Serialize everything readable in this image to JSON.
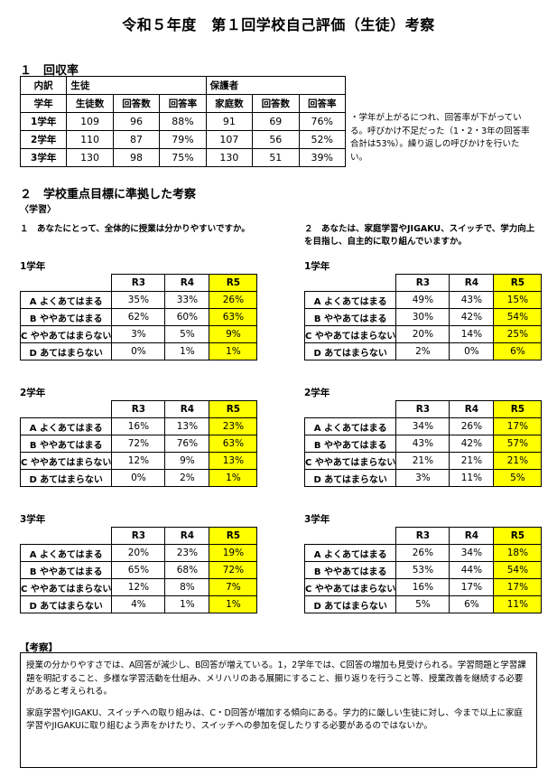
{
  "title": "令和５年度　第１回学校自己評価（生徒）考察",
  "section1": {
    "heading": "１　回収率",
    "header_row1": [
      "内訳",
      "生徒",
      "保護者"
    ],
    "header_row2": [
      "学年",
      "生徒数",
      "回答数",
      "回答率",
      "家庭数",
      "回答数",
      "回答率"
    ],
    "rows": [
      [
        "1学年",
        "109",
        "96",
        "88%",
        "91",
        "69",
        "76%"
      ],
      [
        "2学年",
        "110",
        "87",
        "79%",
        "107",
        "56",
        "52%"
      ],
      [
        "3学年",
        "130",
        "98",
        "75%",
        "130",
        "51",
        "39%"
      ]
    ],
    "note": "・学年が上がるにつれ、回答率が下がっている。呼びかけ不足だった（1・2・3年の回答率合計は53%）。繰り返しの呼びかけを行いたい。"
  },
  "section2": {
    "heading": "２　学校重点目標に準拠した考察",
    "sub": "〈学習〉",
    "header": [
      "",
      "R3",
      "R4",
      "R5"
    ],
    "labels": [
      "A よくあてはまる",
      "B ややあてはまる",
      "C ややあてはまらない",
      "D あてはまらない"
    ],
    "left": {
      "question": "１　あなたにとって、全体的に授業は分かりやすいですか。",
      "grades": [
        {
          "name": "1学年",
          "rows": [
            [
              "35%",
              "33%",
              "26%"
            ],
            [
              "62%",
              "60%",
              "63%"
            ],
            [
              "3%",
              "5%",
              "9%"
            ],
            [
              "0%",
              "1%",
              "1%"
            ]
          ]
        },
        {
          "name": "2学年",
          "rows": [
            [
              "16%",
              "13%",
              "23%"
            ],
            [
              "72%",
              "76%",
              "63%"
            ],
            [
              "12%",
              "9%",
              "13%"
            ],
            [
              "0%",
              "2%",
              "1%"
            ]
          ]
        },
        {
          "name": "3学年",
          "rows": [
            [
              "20%",
              "23%",
              "19%"
            ],
            [
              "65%",
              "68%",
              "72%"
            ],
            [
              "12%",
              "8%",
              "7%"
            ],
            [
              "4%",
              "1%",
              "1%"
            ]
          ]
        }
      ]
    },
    "right": {
      "question": "２　あなたは、家庭学習やJIGAKU、スイッチで、学力向上を目指し、自主的に取り組んでいますか。",
      "grades": [
        {
          "name": "1学年",
          "rows": [
            [
              "49%",
              "43%",
              "15%"
            ],
            [
              "30%",
              "42%",
              "54%"
            ],
            [
              "20%",
              "14%",
              "25%"
            ],
            [
              "2%",
              "0%",
              "6%"
            ]
          ]
        },
        {
          "name": "2学年",
          "rows": [
            [
              "34%",
              "26%",
              "17%"
            ],
            [
              "43%",
              "42%",
              "57%"
            ],
            [
              "21%",
              "21%",
              "21%"
            ],
            [
              "3%",
              "11%",
              "5%"
            ]
          ]
        },
        {
          "name": "3学年",
          "rows": [
            [
              "26%",
              "34%",
              "18%"
            ],
            [
              "53%",
              "44%",
              "54%"
            ],
            [
              "16%",
              "17%",
              "17%"
            ],
            [
              "5%",
              "6%",
              "11%"
            ]
          ]
        }
      ]
    }
  },
  "consideration": {
    "heading": "【考察】",
    "p1": "授業の分かりやすさでは、A回答が減少し、B回答が増えている。1，2学年では、C回答の増加も見受けられる。学習問題と学習課題を明記すること、多様な学習活動を仕組み、メリハリのある展開にすること、振り返りを行うこと等、授業改善を継続する必要があると考えられる。",
    "p2": "家庭学習やJIGAKU、スイッチへの取り組みは、C・D回答が増加する傾向にある。学力的に厳しい生徒に対し、今まで以上に家庭学習やJIGAKUに取り組むよう声をかけたり、スイッチへの参加を促したりする必要があるのではないか。"
  }
}
